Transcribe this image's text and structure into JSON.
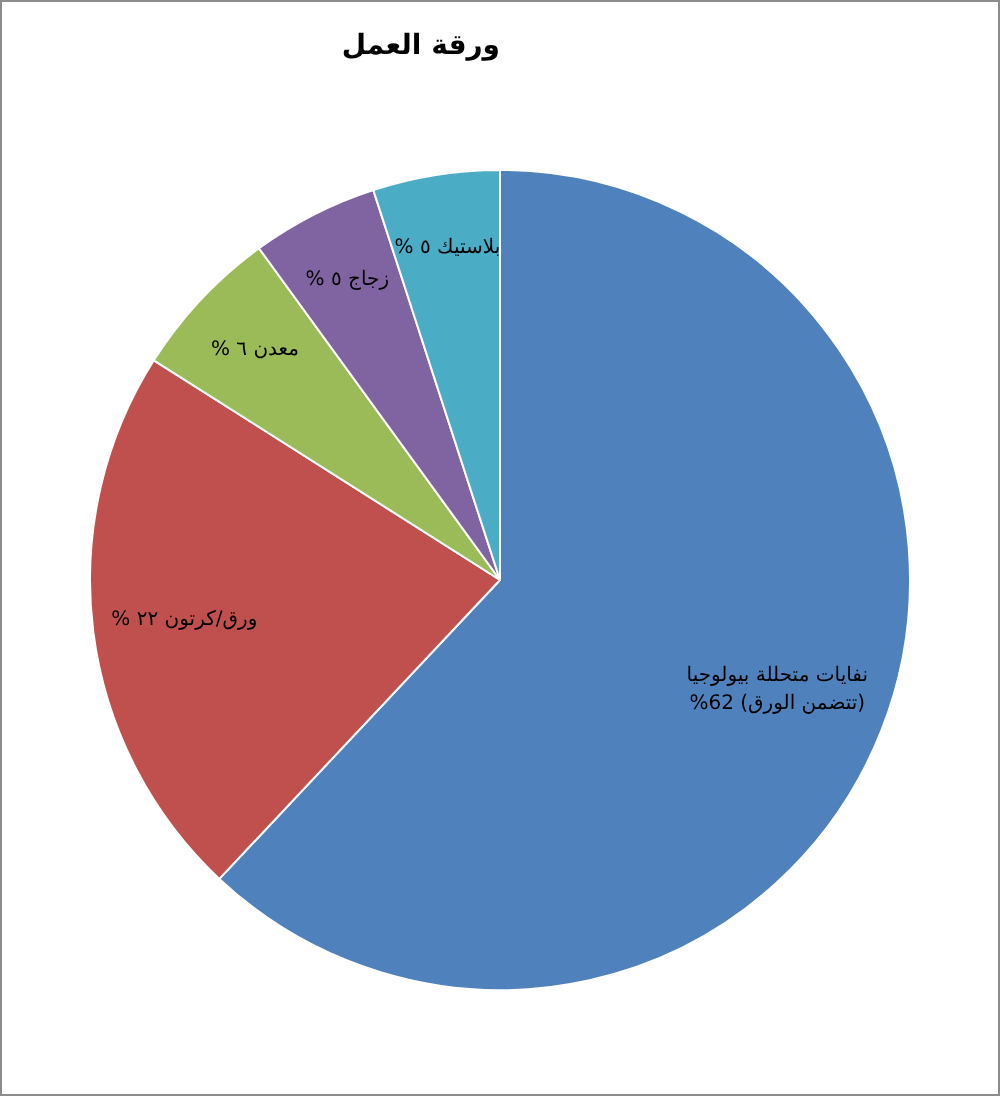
{
  "chart_data": {
    "type": "pie",
    "title": "ورقة العمل",
    "categories": [
      "نفايات متحللة بيولوجيا (تتضمن الورق)",
      "ورق/كرتون",
      "معدن",
      "زجاج",
      "بلاستيك"
    ],
    "values": [
      62,
      22,
      6,
      5,
      5
    ],
    "colors": [
      "#4f81bd",
      "#c0504d",
      "#9bbb59",
      "#8064a2",
      "#4bacc6"
    ],
    "value_labels": [
      "62%",
      "٢٢ %",
      "٦ %",
      "٥ %",
      "٥ %"
    ]
  }
}
